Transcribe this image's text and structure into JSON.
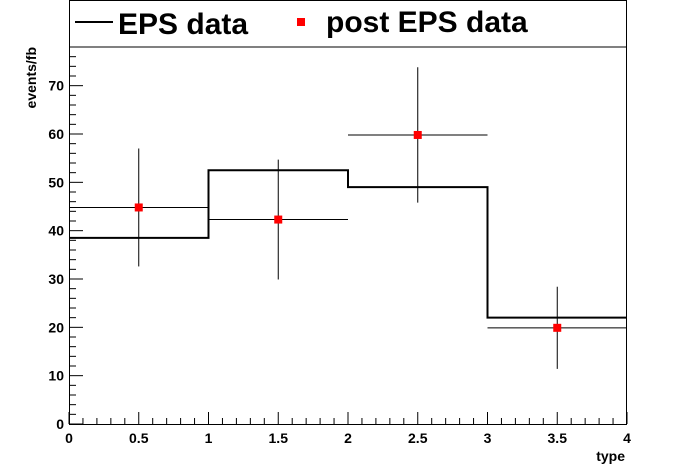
{
  "chart_data": {
    "type": "histogram-with-points",
    "xlabel": "type",
    "ylabel": "events/fb",
    "xlim": [
      0,
      4
    ],
    "ylim": [
      0,
      78
    ],
    "x_ticks": [
      "0",
      "0.5",
      "1",
      "1.5",
      "2",
      "2.5",
      "3",
      "3.5",
      "4"
    ],
    "y_ticks": [
      "0",
      "10",
      "20",
      "30",
      "40",
      "50",
      "60",
      "70"
    ],
    "legend_placement": "top",
    "histogram": {
      "name": "EPS data",
      "color": "#000000",
      "bins": [
        0,
        1,
        2,
        3,
        4
      ],
      "values": [
        38.5,
        52.5,
        49.0,
        22.0
      ]
    },
    "points": {
      "name": "post EPS data",
      "color": "#ff0000",
      "x": [
        0.5,
        1.5,
        2.5,
        3.5
      ],
      "y": [
        44.8,
        42.3,
        59.8,
        19.9
      ],
      "y_err": [
        12.2,
        12.4,
        14.0,
        8.5
      ],
      "x_err": [
        0.5,
        0.5,
        0.5,
        0.5
      ]
    }
  }
}
